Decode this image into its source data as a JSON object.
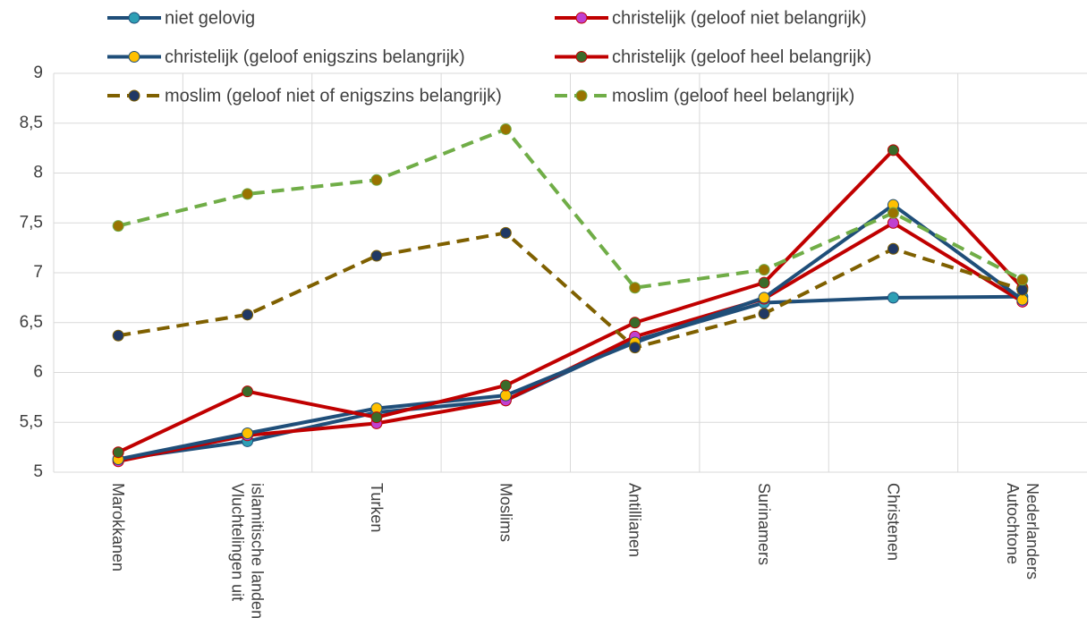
{
  "chart_data": {
    "type": "line",
    "categories": [
      "Marokkanen",
      "Vluchtelingen uit islamitische landen",
      "Turken",
      "Moslims",
      "Antillianen",
      "Surinamers",
      "Christenen",
      "Autochtone Nederlanders"
    ],
    "series": [
      {
        "name": "niet gelovig",
        "color": "#1f4e79",
        "marker_color": "#2e9fb5",
        "dashed": false,
        "values": [
          5.13,
          5.31,
          5.6,
          5.72,
          6.32,
          6.7,
          6.75,
          6.76
        ]
      },
      {
        "name": "christelijk (geloof niet belangrijk)",
        "color": "#c00000",
        "marker_color": "#c040d0",
        "dashed": false,
        "values": [
          5.11,
          5.37,
          5.49,
          5.72,
          6.36,
          6.74,
          7.5,
          6.71
        ]
      },
      {
        "name": "christelijk (geloof enigszins belangrijk)",
        "color": "#1f4e79",
        "marker_color": "#ffc000",
        "dashed": false,
        "values": [
          5.13,
          5.39,
          5.64,
          5.77,
          6.3,
          6.75,
          7.68,
          6.73
        ]
      },
      {
        "name": "christelijk (geloof heel belangrijk)",
        "color": "#c00000",
        "marker_color": "#3a6b2a",
        "dashed": false,
        "values": [
          5.2,
          5.81,
          5.55,
          5.87,
          6.5,
          6.9,
          8.23,
          6.85
        ]
      },
      {
        "name": "moslim (geloof niet of enigszins belangrijk)",
        "color": "#7f6000",
        "marker_color": "#203864",
        "dashed": true,
        "values": [
          6.37,
          6.58,
          7.17,
          7.4,
          6.25,
          6.59,
          7.24,
          6.83
        ]
      },
      {
        "name": "moslim (geloof heel belangrijk)",
        "color": "#70ad47",
        "marker_color": "#997300",
        "dashed": true,
        "values": [
          7.47,
          7.79,
          7.93,
          8.44,
          6.85,
          7.03,
          7.6,
          6.93
        ]
      }
    ],
    "ylim": [
      5,
      9
    ],
    "yticks": [
      5,
      {
        "value": 5.5,
        "label": "5,5"
      },
      6,
      {
        "value": 6.5,
        "label": "6,5"
      },
      7,
      {
        "value": 7.5,
        "label": "7,5"
      },
      8,
      {
        "value": 8.5,
        "label": "8,5"
      },
      9
    ],
    "grid": true,
    "legend": "top"
  }
}
